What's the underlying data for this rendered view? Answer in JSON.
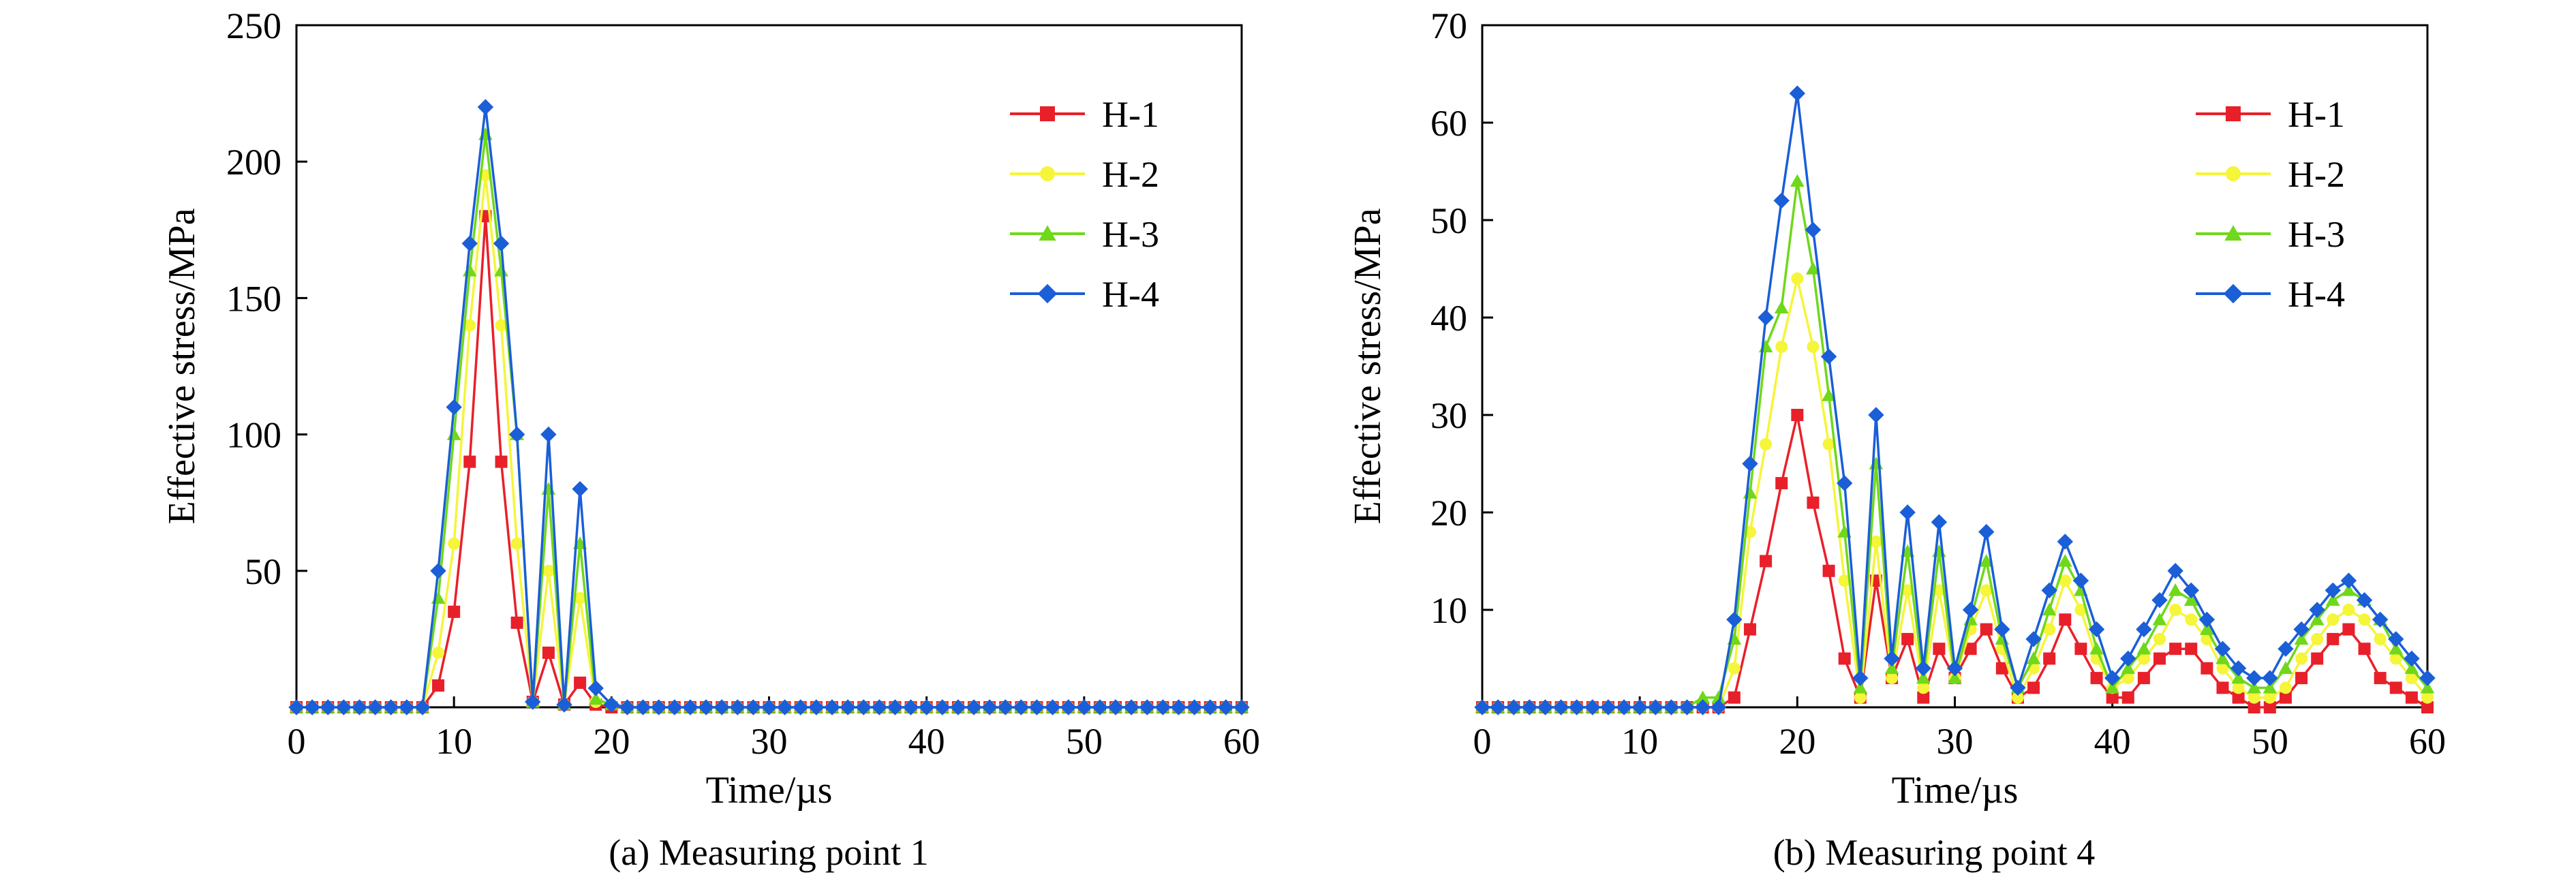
{
  "chart_data": [
    {
      "type": "line",
      "caption": "(a) Measuring point 1",
      "xlabel": "Time/µs",
      "ylabel": "Effective stress/MPa",
      "xlim": [
        0,
        60
      ],
      "ylim": [
        0,
        250
      ],
      "xticks": [
        0,
        10,
        20,
        30,
        40,
        50,
        60
      ],
      "yticks": [
        0,
        50,
        100,
        150,
        200,
        250
      ],
      "ytick_labels_shown": [
        50,
        100,
        150,
        200,
        250
      ],
      "grid": false,
      "legend": "top-right",
      "x": [
        0,
        1,
        2,
        3,
        4,
        5,
        6,
        7,
        8,
        9,
        10,
        11,
        12,
        13,
        14,
        15,
        16,
        17,
        18,
        19,
        20,
        21,
        22,
        23,
        24,
        25,
        26,
        27,
        28,
        29,
        30,
        31,
        32,
        33,
        34,
        35,
        36,
        37,
        38,
        39,
        40,
        41,
        42,
        43,
        44,
        45,
        46,
        47,
        48,
        49,
        50,
        51,
        52,
        53,
        54,
        55,
        56,
        57,
        58,
        59,
        60
      ],
      "series": [
        {
          "name": "H-1",
          "color": "#e8202a",
          "marker": "square",
          "values": [
            0,
            0,
            0,
            0,
            0,
            0,
            0,
            0,
            0,
            8,
            35,
            90,
            180,
            90,
            31,
            2,
            20,
            1,
            9,
            1,
            0,
            0,
            0,
            0,
            0,
            0,
            0,
            0,
            0,
            0,
            0,
            0,
            0,
            0,
            0,
            0,
            0,
            0,
            0,
            0,
            0,
            0,
            0,
            0,
            0,
            0,
            0,
            0,
            0,
            0,
            0,
            0,
            0,
            0,
            0,
            0,
            0,
            0,
            0,
            0,
            0
          ]
        },
        {
          "name": "H-2",
          "color": "#f5f53a",
          "marker": "circle",
          "values": [
            0,
            0,
            0,
            0,
            0,
            0,
            0,
            0,
            0,
            20,
            60,
            140,
            195,
            140,
            60,
            2,
            50,
            1,
            40,
            2,
            1,
            0,
            0,
            0,
            0,
            0,
            0,
            0,
            0,
            0,
            0,
            0,
            0,
            0,
            0,
            0,
            0,
            0,
            0,
            0,
            0,
            0,
            0,
            0,
            0,
            0,
            0,
            0,
            0,
            0,
            0,
            0,
            0,
            0,
            0,
            0,
            0,
            0,
            0,
            0,
            0
          ]
        },
        {
          "name": "H-3",
          "color": "#6fd81a",
          "marker": "triangle",
          "values": [
            0,
            0,
            0,
            0,
            0,
            0,
            0,
            0,
            0,
            40,
            100,
            160,
            210,
            160,
            100,
            2,
            80,
            1,
            60,
            3,
            1,
            0,
            0,
            0,
            0,
            0,
            0,
            0,
            0,
            0,
            0,
            0,
            0,
            0,
            0,
            0,
            0,
            0,
            0,
            0,
            0,
            0,
            0,
            0,
            0,
            0,
            0,
            0,
            0,
            0,
            0,
            0,
            0,
            0,
            0,
            0,
            0,
            0,
            0,
            0,
            0
          ]
        },
        {
          "name": "H-4",
          "color": "#1a5ed8",
          "marker": "diamond",
          "values": [
            0,
            0,
            0,
            0,
            0,
            0,
            0,
            0,
            0,
            50,
            110,
            170,
            220,
            170,
            100,
            2,
            100,
            1,
            80,
            7,
            1,
            0,
            0,
            0,
            0,
            0,
            0,
            0,
            0,
            0,
            0,
            0,
            0,
            0,
            0,
            0,
            0,
            0,
            0,
            0,
            0,
            0,
            0,
            0,
            0,
            0,
            0,
            0,
            0,
            0,
            0,
            0,
            0,
            0,
            0,
            0,
            0,
            0,
            0,
            0,
            0
          ]
        }
      ]
    },
    {
      "type": "line",
      "caption": "(b) Measuring point 4",
      "xlabel": "Time/µs",
      "ylabel": "Effective stress/MPa",
      "xlim": [
        0,
        60
      ],
      "ylim": [
        0,
        70
      ],
      "xticks": [
        0,
        10,
        20,
        30,
        40,
        50,
        60
      ],
      "yticks": [
        0,
        10,
        20,
        30,
        40,
        50,
        60,
        70
      ],
      "ytick_labels_shown": [
        10,
        20,
        30,
        40,
        50,
        60,
        70
      ],
      "grid": false,
      "legend": "top-right",
      "x": [
        0,
        1,
        2,
        3,
        4,
        5,
        6,
        7,
        8,
        9,
        10,
        11,
        12,
        13,
        14,
        15,
        16,
        17,
        18,
        19,
        20,
        21,
        22,
        23,
        24,
        25,
        26,
        27,
        28,
        29,
        30,
        31,
        32,
        33,
        34,
        35,
        36,
        37,
        38,
        39,
        40,
        41,
        42,
        43,
        44,
        45,
        46,
        47,
        48,
        49,
        50,
        51,
        52,
        53,
        54,
        55,
        56,
        57,
        58,
        59,
        60
      ],
      "series": [
        {
          "name": "H-1",
          "color": "#e8202a",
          "marker": "square",
          "values": [
            0,
            0,
            0,
            0,
            0,
            0,
            0,
            0,
            0,
            0,
            0,
            0,
            0,
            0,
            0,
            0,
            1,
            8,
            15,
            23,
            30,
            21,
            14,
            5,
            1,
            13,
            3,
            7,
            1,
            6,
            3,
            6,
            8,
            4,
            1,
            2,
            5,
            9,
            6,
            3,
            1,
            1,
            3,
            5,
            6,
            6,
            4,
            2,
            1,
            0,
            0,
            1,
            3,
            5,
            7,
            8,
            6,
            3,
            2,
            1,
            0
          ]
        },
        {
          "name": "H-2",
          "color": "#f5f53a",
          "marker": "circle",
          "values": [
            0,
            0,
            0,
            0,
            0,
            0,
            0,
            0,
            0,
            0,
            0,
            0,
            0,
            0,
            0,
            0,
            4,
            18,
            27,
            37,
            44,
            37,
            27,
            13,
            1,
            17,
            3,
            12,
            2,
            12,
            3,
            8,
            12,
            6,
            1,
            4,
            8,
            13,
            10,
            5,
            2,
            3,
            5,
            7,
            10,
            9,
            7,
            4,
            2,
            1,
            1,
            2,
            5,
            7,
            9,
            10,
            9,
            7,
            5,
            3,
            1
          ]
        },
        {
          "name": "H-3",
          "color": "#6fd81a",
          "marker": "triangle",
          "values": [
            0,
            0,
            0,
            0,
            0,
            0,
            0,
            0,
            0,
            0,
            0,
            0,
            0,
            0,
            1,
            1,
            7,
            22,
            37,
            41,
            54,
            45,
            32,
            18,
            2,
            25,
            4,
            16,
            3,
            16,
            3,
            9,
            15,
            7,
            2,
            5,
            10,
            15,
            12,
            6,
            2,
            4,
            6,
            9,
            12,
            11,
            8,
            5,
            3,
            2,
            2,
            4,
            7,
            9,
            11,
            12,
            11,
            9,
            6,
            4,
            2
          ]
        },
        {
          "name": "H-4",
          "color": "#1a5ed8",
          "marker": "diamond",
          "values": [
            0,
            0,
            0,
            0,
            0,
            0,
            0,
            0,
            0,
            0,
            0,
            0,
            0,
            0,
            0,
            0,
            9,
            25,
            40,
            52,
            63,
            49,
            36,
            23,
            3,
            30,
            5,
            20,
            4,
            19,
            4,
            10,
            18,
            8,
            2,
            7,
            12,
            17,
            13,
            8,
            3,
            5,
            8,
            11,
            14,
            12,
            9,
            6,
            4,
            3,
            3,
            6,
            8,
            10,
            12,
            13,
            11,
            9,
            7,
            5,
            3
          ]
        }
      ]
    }
  ]
}
